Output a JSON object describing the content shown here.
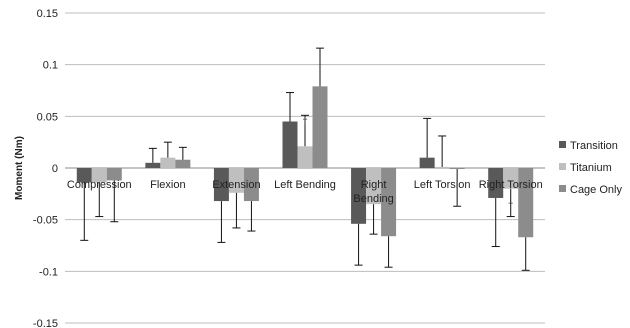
{
  "chart_data": {
    "type": "bar",
    "title": "",
    "xlabel": "",
    "ylabel": "Moment (Nm)",
    "ylim": [
      -0.15,
      0.15
    ],
    "yticks": [
      -0.15,
      -0.1,
      -0.05,
      0,
      0.05,
      0.1,
      0.15
    ],
    "ytick_labels": [
      "-0.15",
      "-0.1",
      "-0.05",
      "0",
      "0.05",
      "0.1",
      "0.15"
    ],
    "grid": "horizontal",
    "legend_position": "right",
    "categories": [
      "Compression",
      "Flexion",
      "Extension",
      "Left Bending",
      "Right Bending",
      "Left Torsion",
      "Right Torsion"
    ],
    "category_label_lines": [
      [
        "Compression"
      ],
      [
        "Flexion"
      ],
      [
        "Extension"
      ],
      [
        "Left Bending"
      ],
      [
        "Right",
        "Bending"
      ],
      [
        "Left Torsion"
      ],
      [
        "Right Torsion"
      ]
    ],
    "series": [
      {
        "name": "Transition",
        "color": "#595959",
        "values": [
          -0.014,
          0.005,
          -0.032,
          0.045,
          -0.054,
          0.01,
          -0.029
        ],
        "error": [
          0.056,
          0.014,
          0.04,
          0.028,
          0.04,
          0.038,
          0.047
        ]
      },
      {
        "name": "Titanium",
        "color": "#bfbfbf",
        "values": [
          -0.014,
          0.01,
          -0.024,
          0.021,
          -0.035,
          0.001,
          -0.02
        ],
        "error": [
          0.033,
          0.015,
          0.034,
          0.03,
          0.029,
          0.03,
          0.027
        ]
      },
      {
        "name": "Cage Only",
        "color": "#8c8c8c",
        "values": [
          -0.012,
          0.008,
          -0.032,
          0.079,
          -0.066,
          -0.001,
          -0.067
        ],
        "error": [
          0.04,
          0.012,
          0.029,
          0.037,
          0.03,
          0.036,
          0.032
        ]
      }
    ],
    "annotations": [
      {
        "text": "†",
        "category": "Left Bending",
        "series": "Titanium",
        "side": "above"
      },
      {
        "text": "†",
        "category": "Right Torsion",
        "series": "Titanium",
        "side": "below"
      }
    ]
  }
}
